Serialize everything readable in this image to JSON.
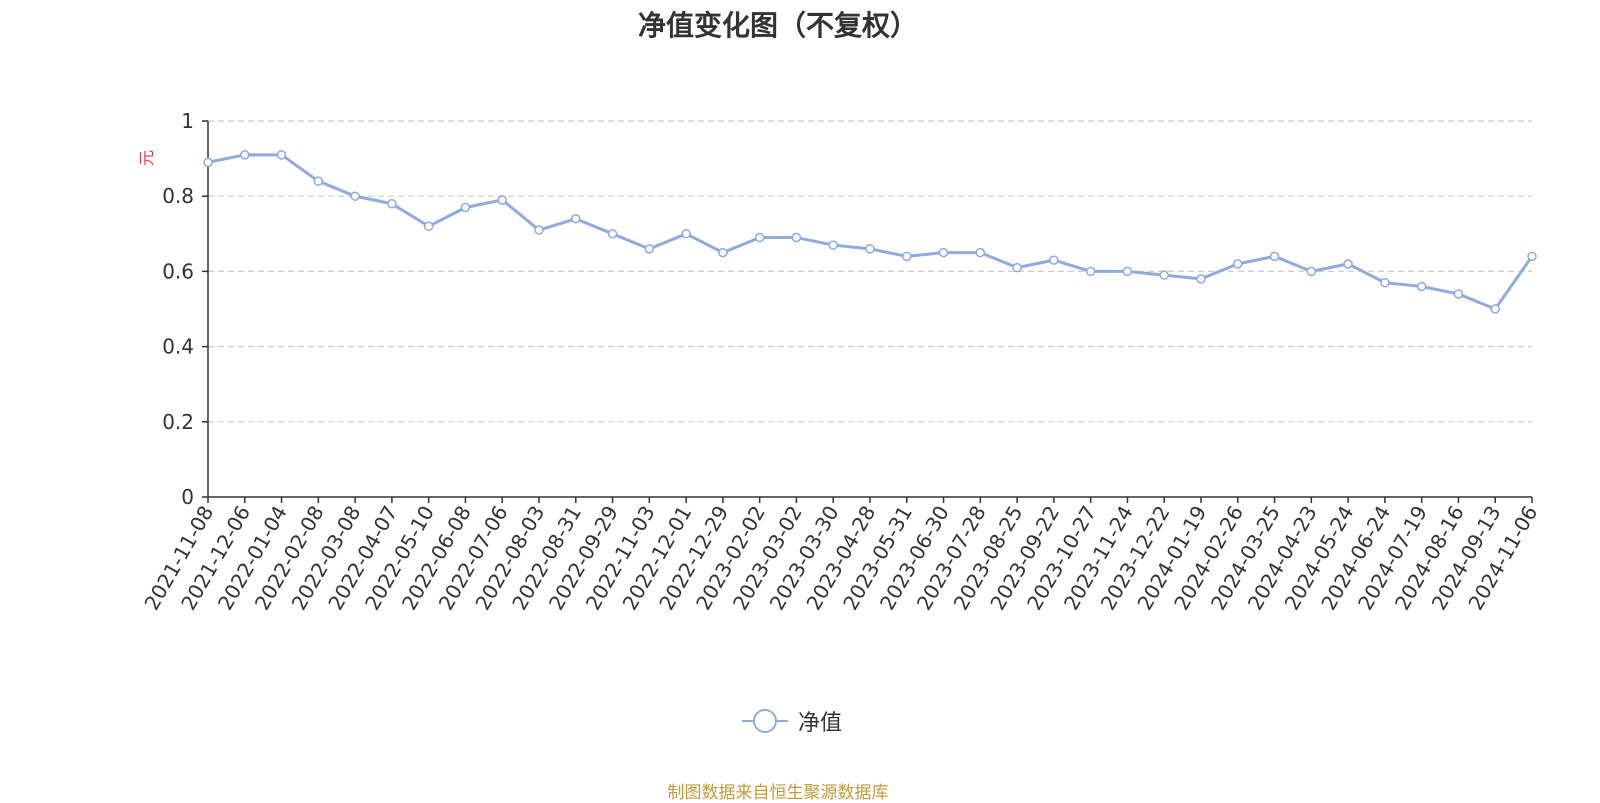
{
  "chart_data": {
    "type": "line",
    "title": "净值变化图（不复权）",
    "ylabel": "元",
    "ylim": [
      0,
      1
    ],
    "yticks": [
      "0",
      "0.2",
      "0.4",
      "0.6",
      "0.8",
      "1"
    ],
    "grid": true,
    "legend_placement": "bottom-center",
    "x": [
      "2021-11-08",
      "2021-12-06",
      "2022-01-04",
      "2022-02-08",
      "2022-03-08",
      "2022-04-07",
      "2022-05-10",
      "2022-06-08",
      "2022-07-06",
      "2022-08-03",
      "2022-08-31",
      "2022-09-29",
      "2022-11-03",
      "2022-12-01",
      "2022-12-29",
      "2023-02-02",
      "2023-03-02",
      "2023-03-30",
      "2023-04-28",
      "2023-05-31",
      "2023-06-30",
      "2023-07-28",
      "2023-08-25",
      "2023-09-22",
      "2023-10-27",
      "2023-11-24",
      "2023-12-22",
      "2024-01-19",
      "2024-02-26",
      "2024-03-25",
      "2024-04-23",
      "2024-05-24",
      "2024-06-24",
      "2024-07-19",
      "2024-08-16",
      "2024-09-13",
      "2024-11-06"
    ],
    "series": [
      {
        "name": "净值",
        "color": "#8faadc",
        "values": [
          0.89,
          0.91,
          0.91,
          0.84,
          0.8,
          0.78,
          0.72,
          0.77,
          0.79,
          0.71,
          0.74,
          0.7,
          0.66,
          0.7,
          0.65,
          0.69,
          0.69,
          0.67,
          0.66,
          0.64,
          0.65,
          0.65,
          0.61,
          0.63,
          0.6,
          0.6,
          0.59,
          0.58,
          0.62,
          0.64,
          0.6,
          0.62,
          0.57,
          0.56,
          0.54,
          0.5,
          0.64
        ]
      }
    ]
  },
  "source_note": "制图数据来自恒生聚源数据库",
  "colors": {
    "line": "#8faadc",
    "grid": "#cccccc",
    "axis": "#333333",
    "ylabel": "#e83e3e",
    "source": "#c49a3a"
  }
}
